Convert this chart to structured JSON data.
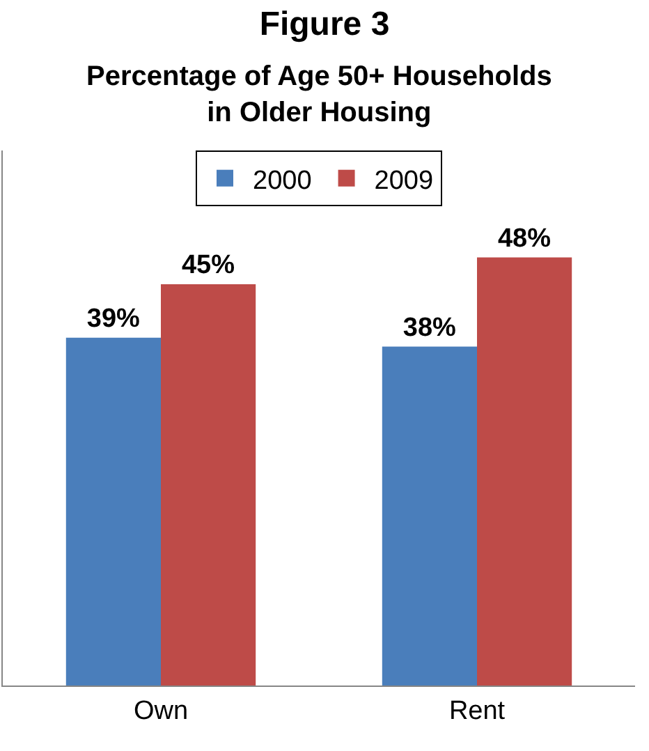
{
  "chart_data": {
    "type": "bar",
    "title": "Figure 3",
    "subtitle": "Percentage of Age 50+ Households in Older Housing",
    "categories": [
      "Own",
      "Rent"
    ],
    "series": [
      {
        "name": "2000",
        "color": "#4a7ebb",
        "values": [
          39,
          38
        ],
        "value_labels": [
          "39%",
          "38%"
        ]
      },
      {
        "name": "2009",
        "color": "#be4b48",
        "values": [
          45,
          48
        ],
        "value_labels": [
          "45%",
          "48%"
        ]
      }
    ],
    "ylim": [
      0,
      60
    ],
    "tick_labels": "x",
    "legend": "top"
  }
}
